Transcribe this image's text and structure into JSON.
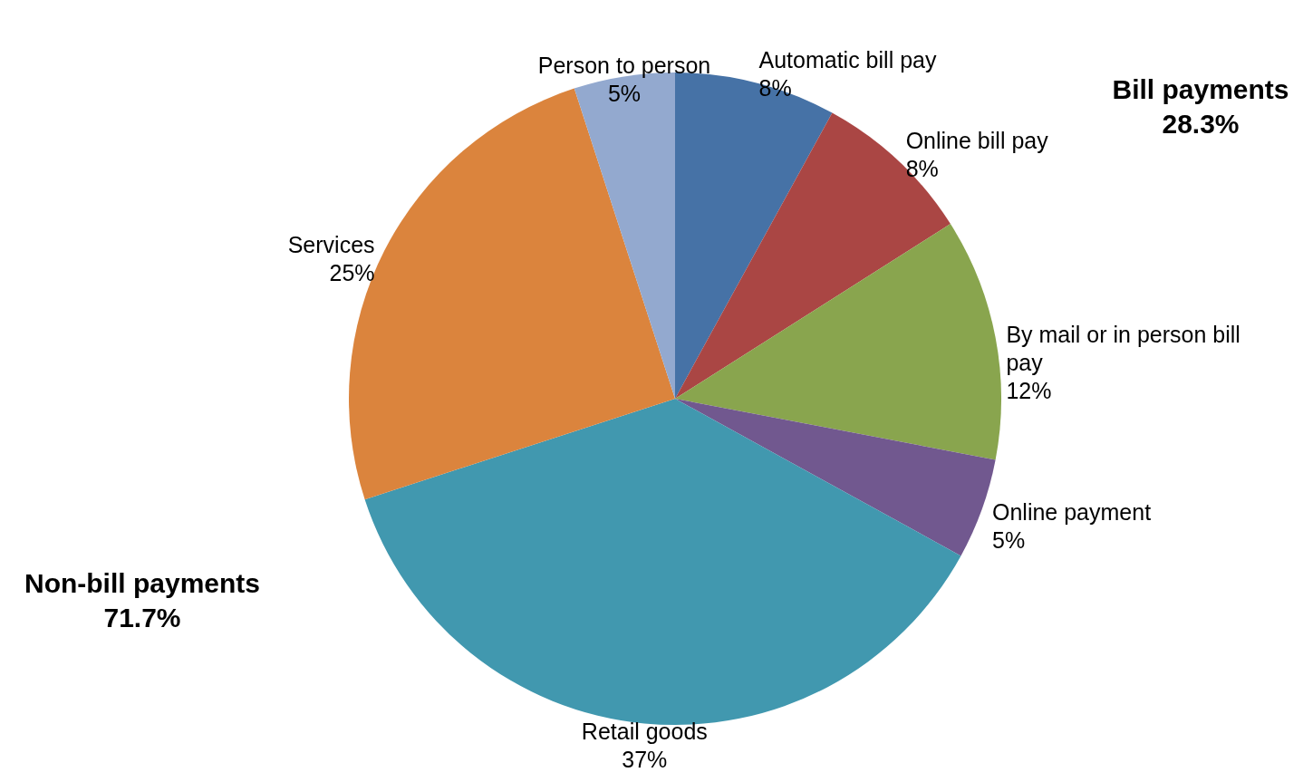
{
  "chart_data": {
    "type": "pie",
    "categories": [
      "Automatic bill pay",
      "Online bill pay",
      "By mail or in person bill pay",
      "Online payment",
      "Retail goods",
      "Services",
      "Person to person"
    ],
    "values": [
      8,
      8,
      12,
      5,
      37,
      25,
      5
    ],
    "value_labels": [
      "8%",
      "8%",
      "12%",
      "5%",
      "37%",
      "25%",
      "5%"
    ],
    "colors": [
      "#4672a6",
      "#aa4644",
      "#89a54e",
      "#71588f",
      "#4198af",
      "#db843d",
      "#93a9cf"
    ],
    "annotations": [
      "Bill payments\n28.3%",
      "Non-bill payments\n71.7%"
    ]
  }
}
